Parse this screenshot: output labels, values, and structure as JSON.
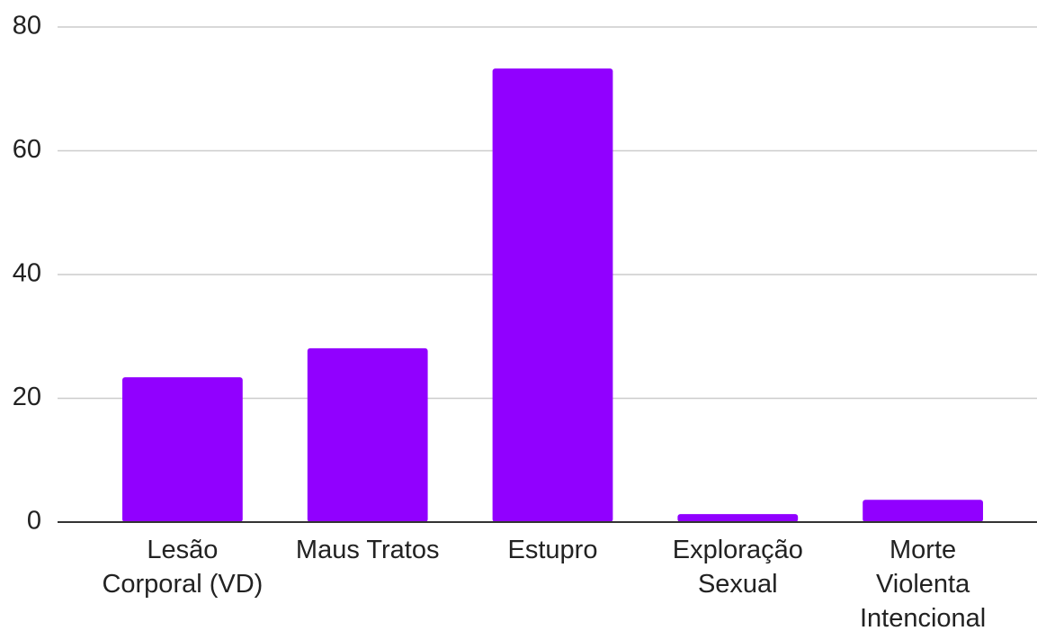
{
  "chart_data": {
    "type": "bar",
    "categories": [
      "Lesão Corporal (VD)",
      "Maus Tratos",
      "Estupro",
      "Exploração Sexual",
      "Morte Violenta Intencional"
    ],
    "values": [
      23.4,
      28.1,
      73.3,
      1.3,
      3.6
    ],
    "color": "#9100ff",
    "ylim": [
      0,
      80
    ],
    "yticks": [
      0,
      20,
      40,
      60,
      80
    ],
    "grid": true
  }
}
